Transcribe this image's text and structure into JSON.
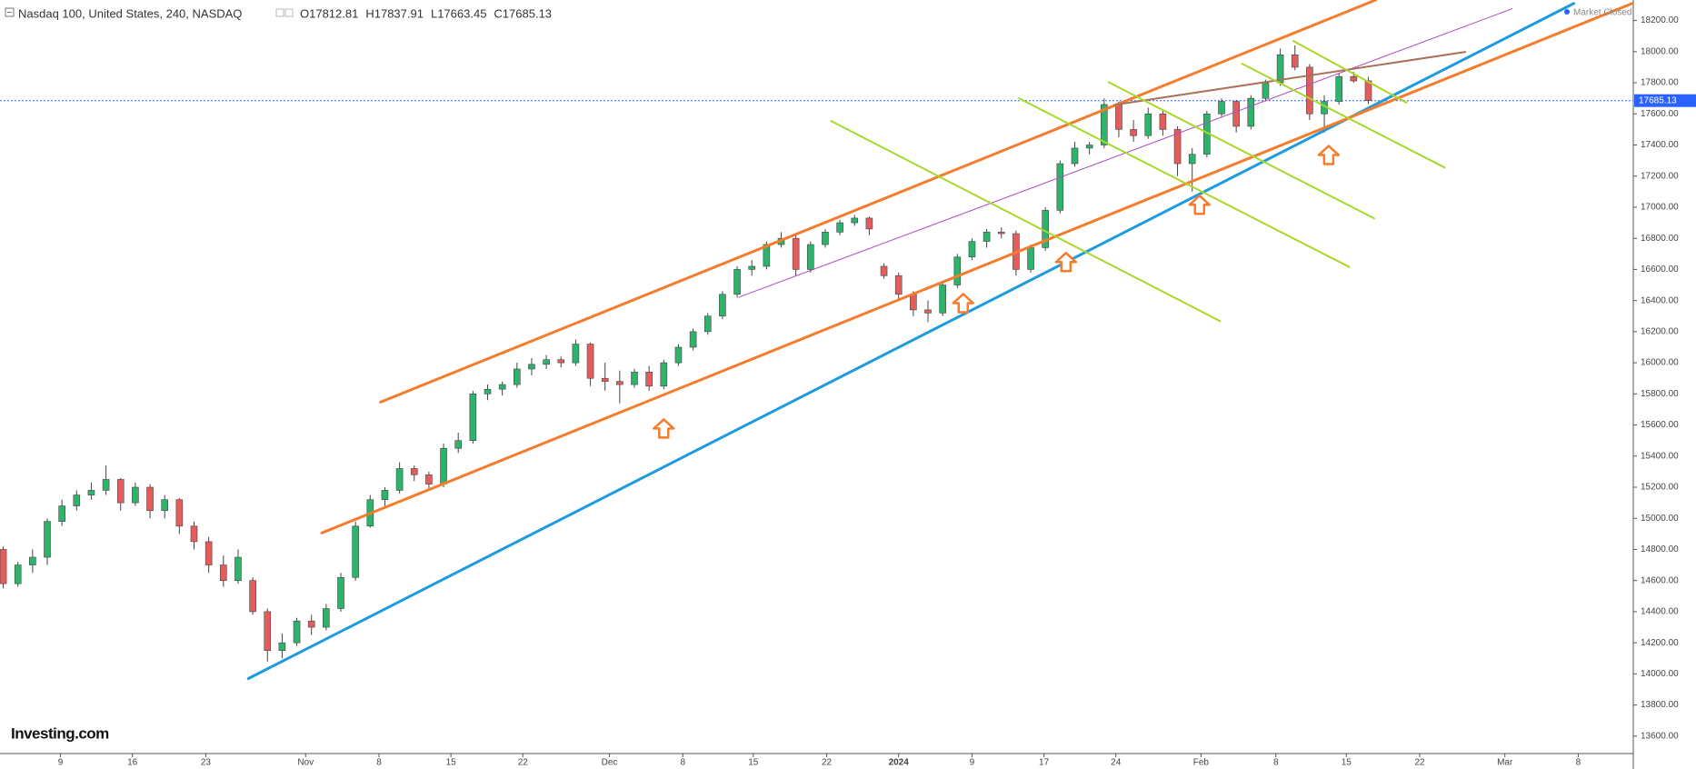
{
  "chart_data": {
    "type": "candlestick",
    "title": "Nasdaq 100, United States, 240, NASDAQ",
    "header_values": [
      "O17812.81",
      "H17837.91",
      "L17663.45",
      "C17685.13"
    ],
    "status": "Market Closed",
    "logo": "Investing.com",
    "up_color": "#2db36b",
    "down_color": "#e35d5d",
    "last_price": 17685.13,
    "last_price_color": "#2962ff",
    "candles": [
      [
        14800,
        14820,
        14550,
        14580
      ],
      [
        14580,
        14720,
        14560,
        14700
      ],
      [
        14700,
        14800,
        14650,
        14750
      ],
      [
        14750,
        15000,
        14700,
        14980
      ],
      [
        14980,
        15120,
        14950,
        15080
      ],
      [
        15080,
        15180,
        15050,
        15150
      ],
      [
        15150,
        15230,
        15120,
        15180
      ],
      [
        15180,
        15340,
        15150,
        15250
      ],
      [
        15250,
        15260,
        15050,
        15100
      ],
      [
        15100,
        15230,
        15080,
        15200
      ],
      [
        15200,
        15220,
        15000,
        15050
      ],
      [
        15050,
        15150,
        15000,
        15120
      ],
      [
        15120,
        15130,
        14900,
        14950
      ],
      [
        14950,
        14980,
        14800,
        14850
      ],
      [
        14850,
        14880,
        14650,
        14700
      ],
      [
        14700,
        14760,
        14560,
        14600
      ],
      [
        14600,
        14800,
        14580,
        14750
      ],
      [
        14600,
        14620,
        14380,
        14400
      ],
      [
        14400,
        14420,
        14080,
        14150
      ],
      [
        14150,
        14260,
        14100,
        14200
      ],
      [
        14200,
        14360,
        14180,
        14340
      ],
      [
        14340,
        14380,
        14250,
        14300
      ],
      [
        14300,
        14450,
        14280,
        14420
      ],
      [
        14420,
        14650,
        14400,
        14620
      ],
      [
        14620,
        14980,
        14600,
        14950
      ],
      [
        14950,
        15150,
        14940,
        15120
      ],
      [
        15120,
        15200,
        15080,
        15180
      ],
      [
        15180,
        15360,
        15160,
        15320
      ],
      [
        15320,
        15340,
        15240,
        15280
      ],
      [
        15280,
        15300,
        15180,
        15220
      ],
      [
        15220,
        15480,
        15200,
        15450
      ],
      [
        15450,
        15550,
        15420,
        15500
      ],
      [
        15500,
        15820,
        15480,
        15800
      ],
      [
        15800,
        15860,
        15760,
        15830
      ],
      [
        15830,
        15880,
        15790,
        15860
      ],
      [
        15860,
        16000,
        15840,
        15960
      ],
      [
        15960,
        16030,
        15920,
        15990
      ],
      [
        15990,
        16050,
        15960,
        16020
      ],
      [
        16020,
        16040,
        15970,
        16000
      ],
      [
        16000,
        16150,
        15980,
        16120
      ],
      [
        16120,
        16130,
        15850,
        15900
      ],
      [
        15900,
        16000,
        15820,
        15880
      ],
      [
        15880,
        15950,
        15740,
        15860
      ],
      [
        15860,
        15960,
        15840,
        15940
      ],
      [
        15940,
        15980,
        15820,
        15850
      ],
      [
        15850,
        16020,
        15830,
        16000
      ],
      [
        16000,
        16120,
        15980,
        16100
      ],
      [
        16100,
        16220,
        16080,
        16200
      ],
      [
        16200,
        16320,
        16180,
        16300
      ],
      [
        16300,
        16460,
        16280,
        16440
      ],
      [
        16440,
        16620,
        16420,
        16600
      ],
      [
        16600,
        16660,
        16560,
        16620
      ],
      [
        16620,
        16780,
        16600,
        16760
      ],
      [
        16760,
        16840,
        16740,
        16800
      ],
      [
        16800,
        16830,
        16560,
        16600
      ],
      [
        16600,
        16780,
        16580,
        16760
      ],
      [
        16760,
        16860,
        16740,
        16840
      ],
      [
        16840,
        16920,
        16820,
        16900
      ],
      [
        16900,
        16950,
        16880,
        16930
      ],
      [
        16930,
        16940,
        16820,
        16860
      ],
      [
        16620,
        16640,
        16540,
        16560
      ],
      [
        16560,
        16580,
        16400,
        16440
      ],
      [
        16440,
        16460,
        16300,
        16340
      ],
      [
        16340,
        16400,
        16260,
        16320
      ],
      [
        16320,
        16520,
        16300,
        16500
      ],
      [
        16500,
        16700,
        16480,
        16680
      ],
      [
        16680,
        16800,
        16660,
        16780
      ],
      [
        16780,
        16860,
        16740,
        16840
      ],
      [
        16840,
        16870,
        16800,
        16830
      ],
      [
        16830,
        16850,
        16560,
        16600
      ],
      [
        16600,
        16760,
        16580,
        16740
      ],
      [
        16740,
        17000,
        16720,
        16980
      ],
      [
        16980,
        17300,
        16960,
        17280
      ],
      [
        17280,
        17420,
        17260,
        17380
      ],
      [
        17380,
        17420,
        17340,
        17400
      ],
      [
        17400,
        17700,
        17380,
        17660
      ],
      [
        17660,
        17680,
        17450,
        17500
      ],
      [
        17500,
        17560,
        17420,
        17460
      ],
      [
        17460,
        17640,
        17440,
        17600
      ],
      [
        17600,
        17620,
        17460,
        17500
      ],
      [
        17500,
        17520,
        17200,
        17280
      ],
      [
        17280,
        17380,
        17100,
        17340
      ],
      [
        17340,
        17620,
        17320,
        17600
      ],
      [
        17600,
        17700,
        17580,
        17680
      ],
      [
        17680,
        17690,
        17480,
        17520
      ],
      [
        17520,
        17720,
        17500,
        17700
      ],
      [
        17700,
        17820,
        17680,
        17800
      ],
      [
        17800,
        18020,
        17780,
        17980
      ],
      [
        17980,
        18040,
        17880,
        17900
      ],
      [
        17900,
        17920,
        17560,
        17600
      ],
      [
        17600,
        17720,
        17480,
        17680
      ],
      [
        17680,
        17860,
        17660,
        17840
      ],
      [
        17840,
        17870,
        17800,
        17812
      ],
      [
        17812.81,
        17837.91,
        17663.45,
        17685.13
      ]
    ],
    "trendlines": [
      {
        "color": "#1e9be0",
        "width": 3,
        "points": [
          [
            16.7,
            13970
          ],
          [
            107,
            18310
          ]
        ]
      },
      {
        "color": "#f57c2c",
        "width": 3,
        "points": [
          [
            25.7,
            15747
          ],
          [
            93.5,
            18332
          ]
        ]
      },
      {
        "color": "#f57c2c",
        "width": 3,
        "points": [
          [
            21.7,
            14906
          ],
          [
            111,
            18311
          ]
        ]
      },
      {
        "color": "#b04fc4",
        "width": 1,
        "points": [
          [
            50.1,
            16421
          ],
          [
            102.8,
            18276
          ]
        ]
      },
      {
        "color": "#a9705a",
        "width": 2,
        "points": [
          [
            75.7,
            17658
          ],
          [
            99.6,
            17998
          ]
        ]
      },
      {
        "color": "#a8d82a",
        "width": 2,
        "points": [
          [
            56.4,
            17554
          ],
          [
            82.9,
            16268
          ]
        ]
      },
      {
        "color": "#a8d82a",
        "width": 2,
        "points": [
          [
            69.2,
            17700
          ],
          [
            91.7,
            16616
          ]
        ]
      },
      {
        "color": "#a8d82a",
        "width": 2,
        "points": [
          [
            75.3,
            17804
          ],
          [
            93.4,
            16928
          ]
        ]
      },
      {
        "color": "#a8d82a",
        "width": 2,
        "points": [
          [
            84.4,
            17922
          ],
          [
            98.2,
            17255
          ]
        ]
      },
      {
        "color": "#a8d82a",
        "width": 2,
        "points": [
          [
            87.9,
            18068
          ],
          [
            95.6,
            17672
          ]
        ]
      }
    ],
    "arrows": {
      "color": "#f57c2c",
      "points": [
        [
          45,
          15636
        ],
        [
          65.4,
          16442
        ],
        [
          72.4,
          16706
        ],
        [
          81.5,
          17074
        ],
        [
          90.3,
          17394
        ]
      ]
    },
    "xlim": [
      -0.22,
      111.05
    ],
    "ylim": [
      13488,
      18332
    ],
    "xticks": [
      {
        "value": 3.9,
        "label": "9"
      },
      {
        "value": 8.8,
        "label": "16"
      },
      {
        "value": 13.8,
        "label": "23"
      },
      {
        "value": 20.6,
        "label": "Nov"
      },
      {
        "value": 25.6,
        "label": "8"
      },
      {
        "value": 30.5,
        "label": "15"
      },
      {
        "value": 35.4,
        "label": "22"
      },
      {
        "value": 41.3,
        "label": "Dec"
      },
      {
        "value": 46.3,
        "label": "8"
      },
      {
        "value": 51.1,
        "label": "15"
      },
      {
        "value": 56.1,
        "label": "22"
      },
      {
        "value": 61.0,
        "label": "2024"
      },
      {
        "value": 66.0,
        "label": "9"
      },
      {
        "value": 70.9,
        "label": "17"
      },
      {
        "value": 75.8,
        "label": "24"
      },
      {
        "value": 81.6,
        "label": "Feb"
      },
      {
        "value": 86.7,
        "label": "8"
      },
      {
        "value": 91.5,
        "label": "15"
      },
      {
        "value": 96.5,
        "label": "22"
      },
      {
        "value": 102.3,
        "label": "Mar"
      },
      {
        "value": 107.3,
        "label": "8"
      }
    ],
    "yticks": [
      {
        "value": 13600,
        "label": "13600.00"
      },
      {
        "value": 13800,
        "label": "13800.00"
      },
      {
        "value": 14000,
        "label": "14000.00"
      },
      {
        "value": 14200,
        "label": "14200.00"
      },
      {
        "value": 14400,
        "label": "14400.00"
      },
      {
        "value": 14600,
        "label": "14600.00"
      },
      {
        "value": 14800,
        "label": "14800.00"
      },
      {
        "value": 15000,
        "label": "15000.00"
      },
      {
        "value": 15200,
        "label": "15200.00"
      },
      {
        "value": 15400,
        "label": "15400.00"
      },
      {
        "value": 15600,
        "label": "15600.00"
      },
      {
        "value": 15800,
        "label": "15800.00"
      },
      {
        "value": 16000,
        "label": "16000.00"
      },
      {
        "value": 16200,
        "label": "16200.00"
      },
      {
        "value": 16400,
        "label": "16400.00"
      },
      {
        "value": 16600,
        "label": "16600.00"
      },
      {
        "value": 16800,
        "label": "16800.00"
      },
      {
        "value": 17000,
        "label": "17000.00"
      },
      {
        "value": 17200,
        "label": "17200.00"
      },
      {
        "value": 17400,
        "label": "17400.00"
      },
      {
        "value": 17600,
        "label": "17600.00"
      },
      {
        "value": 17800,
        "label": "17800.00"
      },
      {
        "value": 18000,
        "label": "18000.00"
      },
      {
        "value": 18200,
        "label": "18200.00"
      }
    ]
  }
}
